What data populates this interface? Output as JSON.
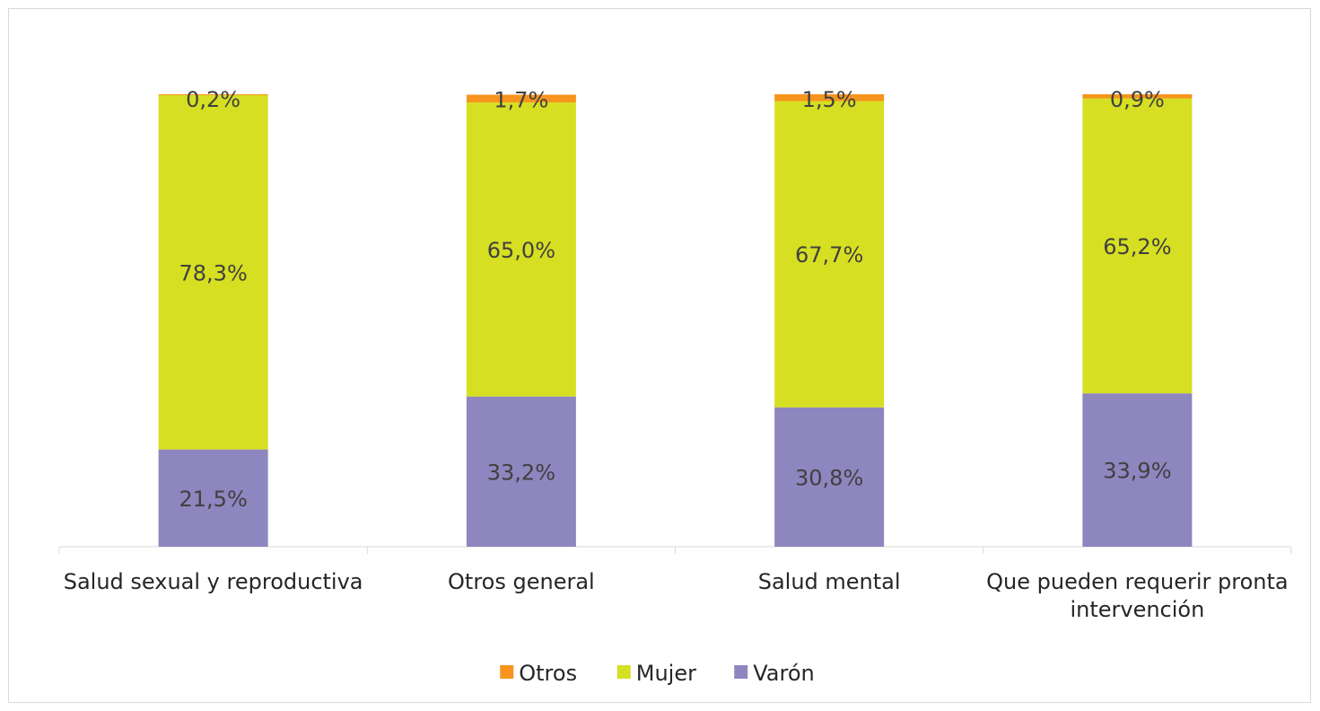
{
  "chart_data": {
    "type": "bar",
    "stacked": true,
    "normalized": true,
    "categories": [
      [
        "Salud sexual y reproductiva"
      ],
      [
        "Otros general"
      ],
      [
        "Salud mental"
      ],
      [
        "Que pueden requerir pronta",
        "intervención"
      ]
    ],
    "series": [
      {
        "name": "Varón",
        "color": "#8e86bf",
        "values": [
          21.5,
          33.2,
          30.8,
          33.9
        ],
        "labels": [
          "21,5%",
          "33,2%",
          "30,8%",
          "33,9%"
        ]
      },
      {
        "name": "Mujer",
        "color": "#d6df22",
        "values": [
          78.3,
          65.0,
          67.7,
          65.2
        ],
        "labels": [
          "78,3%",
          "65,0%",
          "67,7%",
          "65,2%"
        ]
      },
      {
        "name": "Otros",
        "color": "#f7941d",
        "values": [
          0.2,
          1.7,
          1.5,
          0.9
        ],
        "labels": [
          "0,2%",
          "1,7%",
          "1,5%",
          "0,9%"
        ]
      }
    ],
    "legend_order": [
      "Otros",
      "Mujer",
      "Varón"
    ],
    "legend_position": "bottom",
    "ylim": [
      0,
      100
    ],
    "grid": false,
    "axis_line_color": "#d9d9d9"
  }
}
